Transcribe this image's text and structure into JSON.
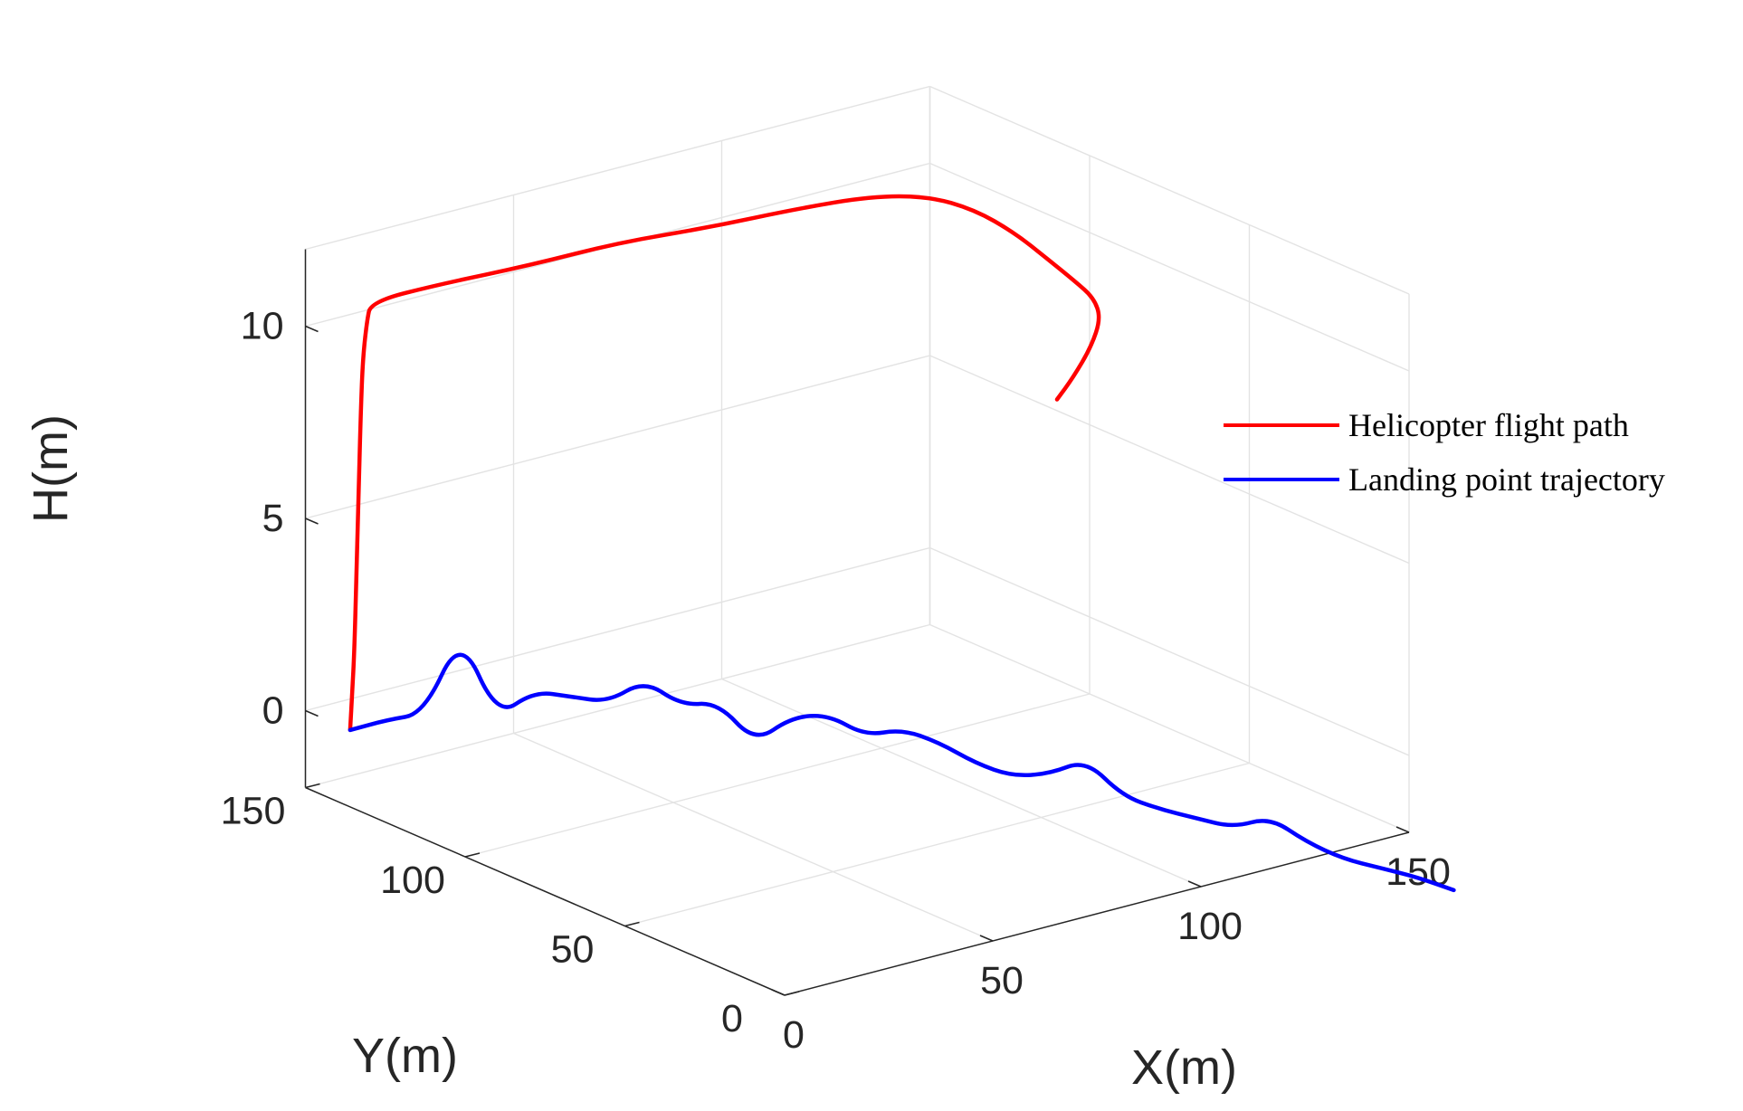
{
  "chart_data": {
    "type": "line",
    "projection": "3d",
    "xlabel": "X(m)",
    "ylabel": "Y(m)",
    "zlabel": "H(m)",
    "xlim": [
      0,
      150
    ],
    "ylim": [
      0,
      150
    ],
    "zlim": [
      -2,
      12
    ],
    "xticks": [
      "0",
      "50",
      "100",
      "150"
    ],
    "yticks": [
      "0",
      "50",
      "100",
      "150"
    ],
    "zticks": [
      "0",
      "5",
      "10"
    ],
    "grid": true,
    "legend_position": "right",
    "series": [
      {
        "name": "Helicopter flight path",
        "color": "#ff0000",
        "points": [
          [
            0,
            136,
            0
          ],
          [
            0.5,
            136,
            1
          ],
          [
            1,
            136,
            2
          ],
          [
            1.5,
            136,
            4
          ],
          [
            2,
            136,
            6
          ],
          [
            2.5,
            136,
            8
          ],
          [
            3,
            136,
            9.5
          ],
          [
            4,
            136,
            10.5
          ],
          [
            5,
            136,
            11
          ],
          [
            20,
            134,
            11.1
          ],
          [
            40,
            132,
            11.1
          ],
          [
            60,
            130,
            11.2
          ],
          [
            80,
            128,
            11.1
          ],
          [
            100,
            126,
            11.1
          ],
          [
            115,
            123,
            11.1
          ],
          [
            125,
            118,
            11.0
          ],
          [
            130,
            110,
            10.8
          ],
          [
            132,
            100,
            10.5
          ],
          [
            132,
            90,
            10.2
          ],
          [
            131,
            80,
            10.0
          ],
          [
            128,
            70,
            10.0
          ],
          [
            122,
            60,
            10.0
          ],
          [
            112,
            50,
            9.9
          ],
          [
            100,
            40,
            9.8
          ],
          [
            90,
            32,
            9.8
          ]
        ]
      },
      {
        "name": "Landing point trajectory",
        "color": "#0000ff",
        "points": [
          [
            0,
            136,
            0
          ],
          [
            5,
            131,
            0.3
          ],
          [
            10,
            126,
            0.5
          ],
          [
            15,
            121,
            2.6
          ],
          [
            20,
            116,
            0.5
          ],
          [
            25,
            111,
            1.2
          ],
          [
            30,
            106,
            1.1
          ],
          [
            35,
            101,
            1.0
          ],
          [
            40,
            96,
            1.6
          ],
          [
            45,
            91,
            1.0
          ],
          [
            50,
            86,
            1.1
          ],
          [
            55,
            81,
            0.1
          ],
          [
            60,
            76,
            0.8
          ],
          [
            65,
            71,
            0.9
          ],
          [
            70,
            66,
            0.4
          ],
          [
            75,
            61,
            0.6
          ],
          [
            80,
            56,
            0.3
          ],
          [
            85,
            51,
            -0.2
          ],
          [
            90,
            46,
            -0.5
          ],
          [
            95,
            41,
            -0.4
          ],
          [
            100,
            36,
            0.0
          ],
          [
            105,
            31,
            -0.9
          ],
          [
            110,
            26,
            -1.2
          ],
          [
            115,
            21,
            -1.4
          ],
          [
            120,
            16,
            -1.6
          ],
          [
            125,
            11,
            -1.3
          ],
          [
            130,
            6,
            -1.9
          ],
          [
            135,
            1,
            -2.3
          ],
          [
            140,
            -4,
            -2.5
          ],
          [
            145,
            -9,
            -2.7
          ],
          [
            150,
            -14,
            -3.0
          ]
        ]
      }
    ]
  }
}
